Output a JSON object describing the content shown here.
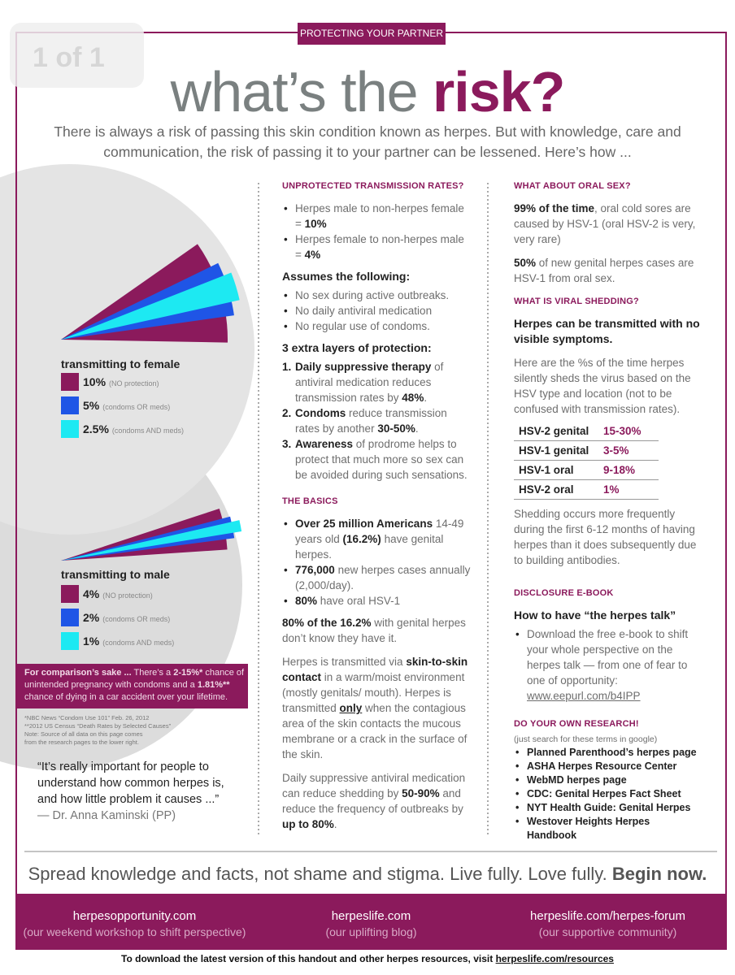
{
  "header": {
    "badge": "1 of 1",
    "tag": "PROTECTING YOUR PARTNER",
    "title_light": "what’s the",
    "title_bold": "risk?",
    "intro": "There is always a risk of passing this skin condition known as herpes. But with knowledge, care and communication, the risk of passing it to your partner can be lessened. Here’s how ..."
  },
  "female_chart": {
    "title": "transmitting to female",
    "series": [
      {
        "label": "10%",
        "value": 10,
        "name": "(NO protection)",
        "color": "#8b1a5c"
      },
      {
        "label": "5%",
        "value": 5,
        "name": "(condoms OR meds)",
        "color": "#1f55e6"
      },
      {
        "label": "2.5%",
        "value": 2.5,
        "name": "(condoms AND meds)",
        "color": "#1de9f2"
      }
    ]
  },
  "male_chart": {
    "title": "transmitting to male",
    "series": [
      {
        "label": "4%",
        "value": 4,
        "name": "(NO protection)",
        "color": "#8b1a5c"
      },
      {
        "label": "2%",
        "value": 2,
        "name": "(condoms OR meds)",
        "color": "#1f55e6"
      },
      {
        "label": "1%",
        "value": 1,
        "name": "(condoms AND meds)",
        "color": "#1de9f2"
      }
    ]
  },
  "comparison": [
    {
      "text": "For comparison’s sake ...",
      "bold": true
    },
    " There’s a ",
    {
      "text": "2-15%*",
      "bold": true
    },
    " chance of unintended pregnancy with condoms and a ",
    {
      "text": "1.81%**",
      "bold": true
    },
    " chance of dying in a car accident over your lifetime."
  ],
  "footnotes": [
    "*NBC News “Condom Use 101” Feb. 26, 2012",
    "**2012 US Census “Death Rates by Selected Causes”",
    "Note: Source of all data on this page comes",
    "from the research pages to the lower right."
  ],
  "quote": {
    "text": "“It’s really important for people to understand how common herpes is, and how little problem it causes ...”",
    "attribution": "— Dr. Anna Kaminski (PP)"
  },
  "middle": {
    "unprotected": {
      "heading": "UNPROTECTED TRANSMISSION RATES?",
      "bullets": [
        [
          "Herpes male to non-herpes female = ",
          {
            "text": "10%",
            "bold": true
          }
        ],
        [
          "Herpes female to non-herpes male = ",
          {
            "text": "4%",
            "bold": true
          }
        ]
      ]
    },
    "assumes": {
      "heading": "Assumes the following:",
      "bullets": [
        "No sex during active outbreaks.",
        "No daily antiviral medication",
        "No regular use of condoms."
      ]
    },
    "layers": {
      "heading": "3 extra layers of protection:",
      "items": [
        {
          "marker": "1.",
          "runs": [
            {
              "text": "Daily suppressive therapy",
              "bold": true
            },
            " of antiviral medication reduces transmission rates by ",
            {
              "text": "48%",
              "bold": true
            },
            "."
          ]
        },
        {
          "marker": "2.",
          "runs": [
            {
              "text": "Condoms",
              "bold": true
            },
            " reduce transmission rates by another ",
            {
              "text": "30-50%",
              "bold": true
            },
            "."
          ]
        },
        {
          "marker": "3.",
          "runs": [
            {
              "text": "Awareness",
              "bold": true
            },
            " of prodrome helps to protect that much more so sex can be avoided during such sensations."
          ]
        }
      ]
    },
    "basics": {
      "heading": "THE BASICS",
      "bullets": [
        [
          {
            "text": "Over 25 million Americans",
            "bold": true
          },
          " 14-49 years old ",
          {
            "text": "(16.2%)",
            "bold": true
          },
          " have genital herpes."
        ],
        [
          {
            "text": "776,000",
            "bold": true
          },
          " new herpes cases annually (2,000/day)."
        ],
        [
          {
            "text": "80%",
            "bold": true
          },
          " have oral HSV-1"
        ]
      ]
    },
    "paragraphs": [
      [
        {
          "text": "80% of the 16.2%",
          "bold": true
        },
        " with genital herpes don’t know they have it."
      ],
      [
        "Herpes is transmitted via ",
        {
          "text": "skin-to-skin contact",
          "bold": true
        },
        " in a warm/moist environment (mostly genitals/ mouth). Herpes is transmitted ",
        {
          "text": "only",
          "bold": true,
          "underline": true
        },
        " when the contagious area of the skin contacts the mucous membrane or a crack in the surface of the skin."
      ],
      [
        "Daily suppressive antiviral medication can reduce shedding by ",
        {
          "text": "50-90%",
          "bold": true
        },
        " and reduce the frequency of outbreaks by ",
        {
          "text": "up to 80%",
          "bold": true
        },
        "."
      ]
    ]
  },
  "right": {
    "oral": {
      "heading": "WHAT ABOUT ORAL SEX?",
      "paragraphs": [
        [
          {
            "text": "99% of the time",
            "bold": true
          },
          ", oral cold sores are caused by HSV-1 (oral HSV-2 is very, very rare)"
        ],
        [
          {
            "text": "50%",
            "bold": true
          },
          " of new genital herpes cases are HSV-1 from oral sex."
        ]
      ]
    },
    "shedding": {
      "heading": "WHAT IS VIRAL SHEDDING?",
      "lead": "Herpes can be transmitted with no visible symptoms.",
      "intro": "Here are the %s of the time herpes silently sheds the virus based on the HSV type and location (not to be confused with transmission rates).",
      "rows": [
        [
          "HSV-2 genital",
          "15-30%"
        ],
        [
          "HSV-1 genital",
          "3-5%"
        ],
        [
          "HSV-1 oral",
          "9-18%"
        ],
        [
          "HSV-2 oral",
          "1%"
        ]
      ],
      "note": "Shedding occurs more frequently during the first 6-12 months of having herpes than it does subsequently due to building antibodies."
    },
    "ebook": {
      "heading": "DISCLOSURE E-BOOK",
      "lead": "How to have “the herpes talk”",
      "bullets": [
        [
          "Download the free e-book to shift your whole perspective on the herpes talk — from one of fear to one of opportunity: ",
          {
            "text": "www.eepurl.com/b4IPP",
            "underline": true
          }
        ]
      ]
    },
    "research": {
      "heading": "DO YOUR OWN RESEARCH!",
      "sub": "(just search for these terms in google)",
      "bullets": [
        "Planned Parenthood’s herpes page",
        "ASHA Herpes Resource Center",
        "WebMD herpes page",
        "CDC: Genital Herpes Fact Sheet",
        "NYT Health Guide: Genital Herpes",
        "Westover Heights Herpes Handbook"
      ]
    }
  },
  "footer": {
    "slogan": [
      "Spread knowledge and facts, not shame and stigma. Live fully. Love fully. ",
      {
        "text": "Begin now.",
        "bold": true
      }
    ],
    "links": [
      {
        "url": "herpesopportunity.com",
        "desc": "(our weekend workshop to shift perspective)"
      },
      {
        "url": "herpeslife.com",
        "desc": "(our uplifting blog)"
      },
      {
        "url": "herpeslife.com/herpes-forum",
        "desc": "(our supportive community)"
      }
    ],
    "bottom": [
      "To download the latest version of this handout and other herpes resources, visit ",
      {
        "text": "herpeslife.com/resources",
        "underline": true
      }
    ]
  }
}
